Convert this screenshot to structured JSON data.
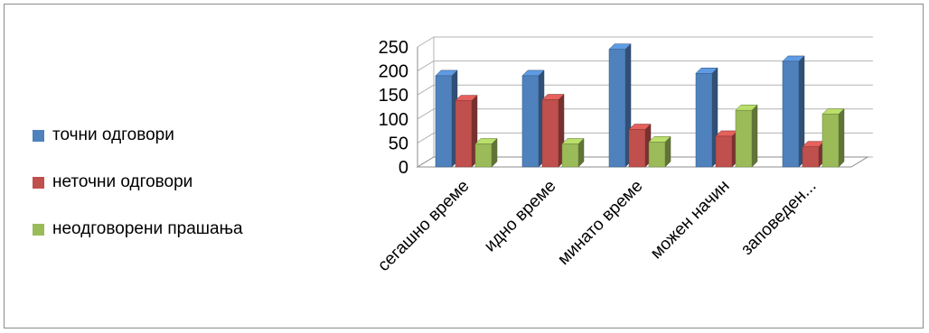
{
  "chart_data": {
    "type": "bar",
    "title": "",
    "xlabel": "",
    "ylabel": "",
    "categories": [
      "сегашно време",
      "идно време",
      "минато време",
      "можен начин",
      "заповеден..."
    ],
    "series": [
      {
        "name": "точни одговори",
        "color": "#4f81bd",
        "values": [
          190,
          190,
          245,
          195,
          220
        ]
      },
      {
        "name": "неточни одговори",
        "color": "#c0504d",
        "values": [
          138,
          140,
          78,
          64,
          42
        ]
      },
      {
        "name": "неодговорени прашања",
        "color": "#9bbb59",
        "values": [
          48,
          48,
          52,
          118,
          110
        ]
      }
    ],
    "ylim": [
      0,
      250
    ],
    "yticks": [
      "0",
      "50",
      "100",
      "150",
      "200",
      "250"
    ],
    "grid": true,
    "legend_position": "left"
  }
}
